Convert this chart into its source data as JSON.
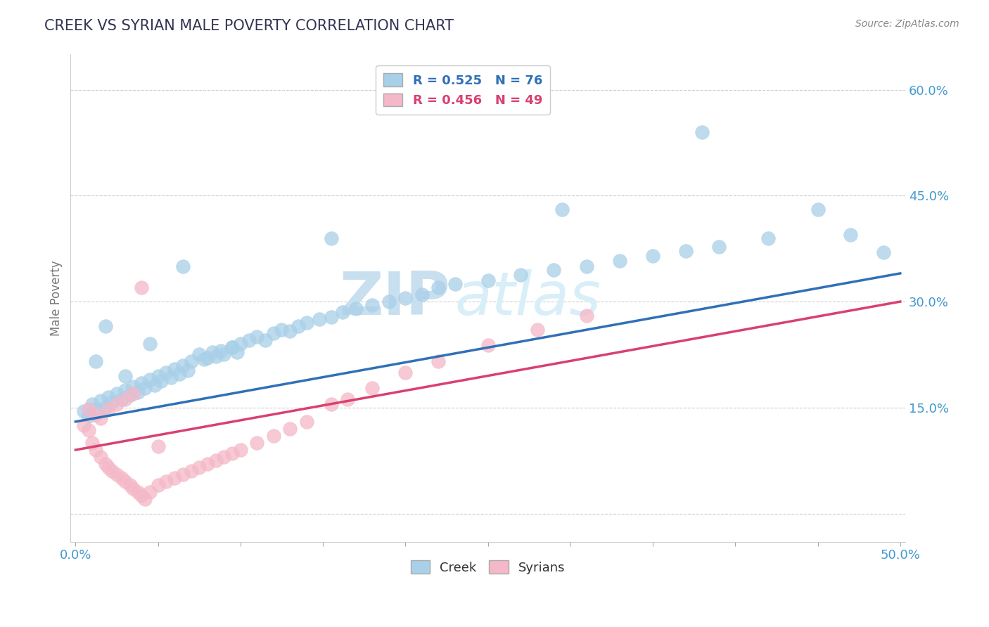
{
  "title": "CREEK VS SYRIAN MALE POVERTY CORRELATION CHART",
  "source": "Source: ZipAtlas.com",
  "ylabel": "Male Poverty",
  "xmin": 0.0,
  "xmax": 0.5,
  "ymin": -0.04,
  "ymax": 0.65,
  "yticks": [
    0.0,
    0.15,
    0.3,
    0.45,
    0.6
  ],
  "ytick_labels": [
    "",
    "15.0%",
    "30.0%",
    "45.0%",
    "60.0%"
  ],
  "creek_color": "#A8D0E8",
  "creek_line_color": "#3070B8",
  "syrian_color": "#F4B8C8",
  "syrian_line_color": "#D94070",
  "creek_R": 0.525,
  "creek_N": 76,
  "syrian_R": 0.456,
  "syrian_N": 49,
  "creek_line_x0": 0.0,
  "creek_line_y0": 0.13,
  "creek_line_x1": 0.5,
  "creek_line_y1": 0.34,
  "syrian_line_x0": 0.0,
  "syrian_line_y0": 0.09,
  "syrian_line_x1": 0.5,
  "syrian_line_y1": 0.3,
  "background_color": "#FFFFFF",
  "watermark_text": "ZIPatlas",
  "watermark_color": "#D8EEF8",
  "grid_color": "#CCCCCC",
  "tick_label_color": "#4499CC",
  "title_color": "#333355",
  "creek_x": [
    0.005,
    0.008,
    0.01,
    0.012,
    0.015,
    0.018,
    0.02,
    0.022,
    0.025,
    0.028,
    0.03,
    0.033,
    0.035,
    0.038,
    0.04,
    0.042,
    0.045,
    0.048,
    0.05,
    0.052,
    0.055,
    0.058,
    0.06,
    0.063,
    0.065,
    0.068,
    0.07,
    0.075,
    0.078,
    0.08,
    0.083,
    0.085,
    0.088,
    0.09,
    0.095,
    0.098,
    0.1,
    0.105,
    0.11,
    0.115,
    0.12,
    0.125,
    0.13,
    0.135,
    0.14,
    0.148,
    0.155,
    0.162,
    0.17,
    0.18,
    0.19,
    0.2,
    0.21,
    0.22,
    0.23,
    0.25,
    0.27,
    0.29,
    0.31,
    0.33,
    0.35,
    0.37,
    0.39,
    0.42,
    0.45,
    0.47,
    0.49,
    0.155,
    0.095,
    0.065,
    0.045,
    0.03,
    0.018,
    0.012,
    0.295,
    0.38
  ],
  "creek_y": [
    0.145,
    0.138,
    0.155,
    0.148,
    0.16,
    0.15,
    0.165,
    0.158,
    0.17,
    0.162,
    0.175,
    0.168,
    0.18,
    0.172,
    0.185,
    0.178,
    0.19,
    0.182,
    0.195,
    0.188,
    0.2,
    0.193,
    0.205,
    0.198,
    0.21,
    0.203,
    0.215,
    0.225,
    0.218,
    0.22,
    0.228,
    0.222,
    0.23,
    0.225,
    0.235,
    0.228,
    0.24,
    0.245,
    0.25,
    0.245,
    0.255,
    0.26,
    0.258,
    0.265,
    0.27,
    0.275,
    0.278,
    0.285,
    0.29,
    0.295,
    0.3,
    0.305,
    0.31,
    0.32,
    0.325,
    0.33,
    0.338,
    0.345,
    0.35,
    0.358,
    0.365,
    0.372,
    0.378,
    0.39,
    0.43,
    0.395,
    0.37,
    0.39,
    0.235,
    0.35,
    0.24,
    0.195,
    0.265,
    0.215,
    0.43,
    0.54
  ],
  "syrian_x": [
    0.005,
    0.008,
    0.01,
    0.012,
    0.015,
    0.018,
    0.02,
    0.022,
    0.025,
    0.028,
    0.03,
    0.033,
    0.035,
    0.038,
    0.04,
    0.042,
    0.045,
    0.05,
    0.055,
    0.06,
    0.065,
    0.07,
    0.075,
    0.08,
    0.085,
    0.09,
    0.095,
    0.1,
    0.11,
    0.12,
    0.13,
    0.14,
    0.155,
    0.165,
    0.18,
    0.2,
    0.22,
    0.25,
    0.28,
    0.31,
    0.015,
    0.02,
    0.025,
    0.03,
    0.035,
    0.008,
    0.012,
    0.04,
    0.05
  ],
  "syrian_y": [
    0.125,
    0.118,
    0.1,
    0.09,
    0.08,
    0.07,
    0.065,
    0.06,
    0.055,
    0.05,
    0.045,
    0.04,
    0.035,
    0.03,
    0.025,
    0.02,
    0.03,
    0.04,
    0.045,
    0.05,
    0.055,
    0.06,
    0.065,
    0.07,
    0.075,
    0.08,
    0.085,
    0.09,
    0.1,
    0.11,
    0.12,
    0.13,
    0.155,
    0.162,
    0.178,
    0.2,
    0.215,
    0.238,
    0.26,
    0.28,
    0.135,
    0.148,
    0.155,
    0.162,
    0.17,
    0.148,
    0.14,
    0.32,
    0.095
  ]
}
